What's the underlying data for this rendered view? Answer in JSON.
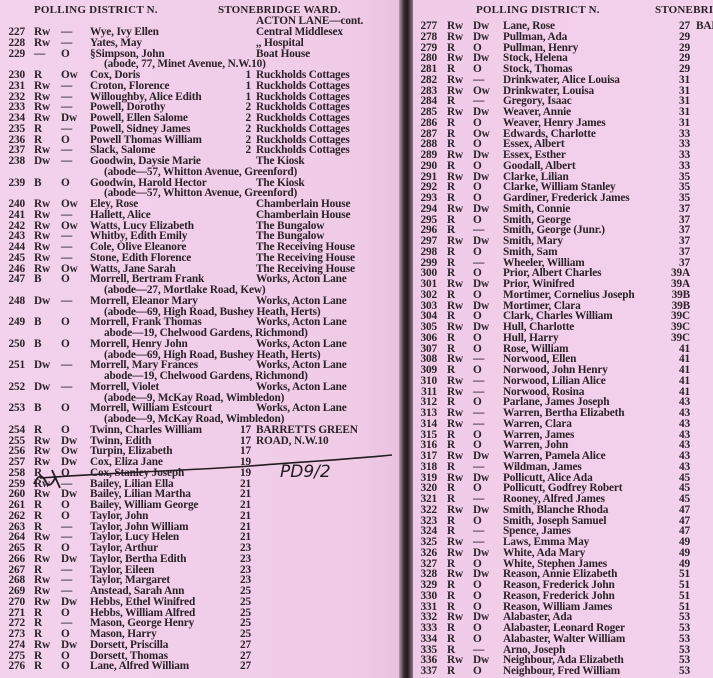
{
  "left_page": {
    "header": {
      "district": "POLLING DISTRICT N.",
      "ward": "STONEBRIDGE WARD."
    },
    "street": "ACTON LANE—cont.",
    "rows": [
      {
        "no": "227",
        "q1": "Rw",
        "q2": "—",
        "name": "Wye, Ivy Ellen",
        "address": "Central Middlesex"
      },
      {
        "no": "228",
        "q1": "Rw",
        "q2": "—",
        "name": "Yates, May",
        "address": ",,  Hospital"
      },
      {
        "no": "229",
        "q1": "—",
        "q2": "O",
        "name": "§Simpson, John",
        "address": "Boat House",
        "abode": "(abode, 77, Minet Avenue, N.W.10)"
      },
      {
        "no": "230",
        "q1": "R",
        "q2": "Ow",
        "name": "Cox, Doris",
        "house": "1",
        "address": "Ruckholds Cottages"
      },
      {
        "no": "231",
        "q1": "Rw",
        "q2": "—",
        "name": "Croton, Florence",
        "house": "1",
        "address": "Ruckholds Cottages"
      },
      {
        "no": "232",
        "q1": "Rw",
        "q2": "—",
        "name": "Willoughby, Alice Edith",
        "house": "1",
        "address": "Ruckholds Cottages"
      },
      {
        "no": "233",
        "q1": "Rw",
        "q2": "—",
        "name": "Powell, Dorothy",
        "house": "2",
        "address": "Ruckholds Cottages"
      },
      {
        "no": "234",
        "q1": "Rw",
        "q2": "Dw",
        "name": "Powell, Ellen Salome",
        "house": "2",
        "address": "Ruckholds Cottages"
      },
      {
        "no": "235",
        "q1": "R",
        "q2": "—",
        "name": "Powell, Sidney James",
        "house": "2",
        "address": "Ruckholds Cottages"
      },
      {
        "no": "236",
        "q1": "R",
        "q2": "O",
        "name": "Powell Thomas William",
        "house": "2",
        "address": "Ruckholds Cottages"
      },
      {
        "no": "237",
        "q1": "Rw",
        "q2": "—",
        "name": "Slack, Salome",
        "house": "2",
        "address": "Ruckholds Cottages"
      },
      {
        "no": "238",
        "q1": "Dw",
        "q2": "—",
        "name": "Goodwin, Daysie Marie",
        "address": "The Kiosk",
        "abode": "(abode—57, Whitton Avenue, Greenford)"
      },
      {
        "no": "239",
        "q1": "B",
        "q2": "O",
        "name": "Goodwin, Harold Hector",
        "address": "The Kiosk",
        "abode": "(abode—57, Whitton Avenue, Greenford)"
      },
      {
        "no": "240",
        "q1": "Rw",
        "q2": "Ow",
        "name": "Eley, Rose",
        "address": "Chamberlain House"
      },
      {
        "no": "241",
        "q1": "Rw",
        "q2": "—",
        "name": "Hallett, Alice",
        "address": "Chamberlain House"
      },
      {
        "no": "242",
        "q1": "Rw",
        "q2": "Ow",
        "name": "Watts, Lucy Elizabeth",
        "address": "The Bungalow"
      },
      {
        "no": "243",
        "q1": "Rw",
        "q2": "—",
        "name": "Whitby, Edith Emily",
        "address": "The Bungalow"
      },
      {
        "no": "244",
        "q1": "Rw",
        "q2": "—",
        "name": "Cole, Olive Eleanore",
        "address": "The Receiving House"
      },
      {
        "no": "245",
        "q1": "Rw",
        "q2": "—",
        "name": "Stone, Edith Florence",
        "address": "The Receiving House"
      },
      {
        "no": "246",
        "q1": "Rw",
        "q2": "Ow",
        "name": "Watts, Jane Sarah",
        "address": "The Receiving House"
      },
      {
        "no": "247",
        "q1": "B",
        "q2": "O",
        "name": "Morrell, Bertram Frank",
        "address": "Works, Acton Lane",
        "abode": "(abode—27, Mortlake Road, Kew)"
      },
      {
        "no": "248",
        "q1": "Dw",
        "q2": "—",
        "name": "Morrell, Eleanor Mary",
        "address": "Works, Acton Lane",
        "abode": "(abode—69, High Road, Bushey Heath, Herts)"
      },
      {
        "no": "249",
        "q1": "B",
        "q2": "O",
        "name": "Morrell, Frank Thomas",
        "address": "Works, Acton Lane",
        "abode": "abode—19, Chelwood Gardens, Richmond)"
      },
      {
        "no": "250",
        "q1": "B",
        "q2": "O",
        "name": "Morrell, Henry John",
        "address": "Works, Acton Lane",
        "abode": "(abode—69, High Road, Bushey Heath, Herts)"
      },
      {
        "no": "251",
        "q1": "Dw",
        "q2": "—",
        "name": "Morrell, Mary Frances",
        "address": "Works, Acton Lane",
        "abode": "abode—19, Chelwood Gardens, Richmond)"
      },
      {
        "no": "252",
        "q1": "Dw",
        "q2": "—",
        "name": "Morrell, Violet",
        "address": "Works, Acton Lane",
        "abode": "(abode—9, McKay Road, Wimbledon)"
      },
      {
        "no": "253",
        "q1": "B",
        "q2": "O",
        "name": "Morrell, William Estcourt",
        "address": "Works, Acton Lane",
        "abode": "(abode—9, McKay Road, Wimbledon)"
      },
      {
        "no": "254",
        "q1": "R",
        "q2": "O",
        "name": "Twinn, Charles William",
        "house": "17",
        "address": "BARRETTS GREEN"
      },
      {
        "no": "255",
        "q1": "Rw",
        "q2": "Dw",
        "name": "Twinn, Edith",
        "house": "17",
        "address": "ROAD, N.W.10"
      },
      {
        "no": "256",
        "q1": "Rw",
        "q2": "Ow",
        "name": "Turpin, Elizabeth",
        "house": "17"
      },
      {
        "no": "257",
        "q1": "Rw",
        "q2": "Dw",
        "name": "Cox, Eliza Jane",
        "house": "19"
      },
      {
        "no": "258",
        "q1": "R",
        "q2": "O",
        "name": "Cox, Stanley Joseph",
        "house": "19"
      },
      {
        "no": "259",
        "q1": "Rw",
        "q2": "—",
        "name": "Bailey, Lilian Ella",
        "house": "21"
      },
      {
        "no": "260",
        "q1": "Rw",
        "q2": "Dw",
        "name": "Bailey, Lilian Martha",
        "house": "21"
      },
      {
        "no": "261",
        "q1": "R",
        "q2": "O",
        "name": "Bailey, William George",
        "house": "21"
      },
      {
        "no": "262",
        "q1": "R",
        "q2": "O",
        "name": "Taylor, John",
        "house": "21"
      },
      {
        "no": "263",
        "q1": "R",
        "q2": "—",
        "name": "Taylor, John William",
        "house": "21"
      },
      {
        "no": "264",
        "q1": "Rw",
        "q2": "—",
        "name": "Taylor, Lucy Helen",
        "house": "21"
      },
      {
        "no": "265",
        "q1": "R",
        "q2": "O",
        "name": "Taylor, Arthur",
        "house": "23"
      },
      {
        "no": "266",
        "q1": "Rw",
        "q2": "Dw",
        "name": "Taylor, Bertha Edith",
        "house": "23"
      },
      {
        "no": "267",
        "q1": "R",
        "q2": "—",
        "name": "Taylor, Eileen",
        "house": "23"
      },
      {
        "no": "268",
        "q1": "Rw",
        "q2": "—",
        "name": "Taylor, Margaret",
        "house": "23"
      },
      {
        "no": "269",
        "q1": "Rw",
        "q2": "—",
        "name": "Anstead, Sarah Ann",
        "house": "25"
      },
      {
        "no": "270",
        "q1": "Rw",
        "q2": "Dw",
        "name": "Hebbs, Ethel Winifred",
        "house": "25"
      },
      {
        "no": "271",
        "q1": "R",
        "q2": "O",
        "name": "Hebbs, William Alfred",
        "house": "25"
      },
      {
        "no": "272",
        "q1": "R",
        "q2": "—",
        "name": "Mason, George Henry",
        "house": "25"
      },
      {
        "no": "273",
        "q1": "R",
        "q2": "O",
        "name": "Mason, Harry",
        "house": "25"
      },
      {
        "no": "274",
        "q1": "Rw",
        "q2": "Dw",
        "name": "Dorsett, Priscilla",
        "house": "27"
      },
      {
        "no": "275",
        "q1": "R",
        "q2": "O",
        "name": "Dorsett, Thomas",
        "house": "27"
      },
      {
        "no": "276",
        "q1": "R",
        "q2": "O",
        "name": "Lane, Alfred William",
        "house": "27"
      }
    ],
    "annotation": "PD9/2"
  },
  "right_page": {
    "header": {
      "district": "POLLING DISTRICT N.",
      "ward": "STONEBRIDGE WARD."
    },
    "rows": [
      {
        "no": "277",
        "q1": "Rw",
        "q2": "Dw",
        "name": "Lane, Rose",
        "house": "27",
        "address": "BARRETTS GREEN"
      },
      {
        "no": "278",
        "q1": "Rw",
        "q2": "Dw",
        "name": "Pullman, Ada",
        "house": "29"
      },
      {
        "no": "279",
        "q1": "R",
        "q2": "O",
        "name": "Pullman, Henry",
        "house": "29"
      },
      {
        "no": "280",
        "q1": "Rw",
        "q2": "Dw",
        "name": "Stock, Helena",
        "house": "29"
      },
      {
        "no": "281",
        "q1": "R",
        "q2": "O",
        "name": "Stock, Thomas",
        "house": "29"
      },
      {
        "no": "282",
        "q1": "Rw",
        "q2": "—",
        "name": "Drinkwater, Alice Louisa",
        "house": "31"
      },
      {
        "no": "283",
        "q1": "Rw",
        "q2": "Ow",
        "name": "Drinkwater, Louisa",
        "house": "31"
      },
      {
        "no": "284",
        "q1": "R",
        "q2": "—",
        "name": "Gregory, Isaac",
        "house": "31"
      },
      {
        "no": "285",
        "q1": "Rw",
        "q2": "Dw",
        "name": "Weaver, Annie",
        "house": "31"
      },
      {
        "no": "286",
        "q1": "R",
        "q2": "O",
        "name": "Weaver, Henry James",
        "house": "31"
      },
      {
        "no": "287",
        "q1": "R",
        "q2": "Ow",
        "name": "Edwards, Charlotte",
        "house": "33"
      },
      {
        "no": "288",
        "q1": "R",
        "q2": "O",
        "name": "Essex, Albert",
        "house": "33"
      },
      {
        "no": "289",
        "q1": "Rw",
        "q2": "Dw",
        "name": "Essex, Esther",
        "house": "33"
      },
      {
        "no": "290",
        "q1": "R",
        "q2": "O",
        "name": "Goodall, Albert",
        "house": "33"
      },
      {
        "no": "291",
        "q1": "Rw",
        "q2": "Dw",
        "name": "Clarke, Lilian",
        "house": "35"
      },
      {
        "no": "292",
        "q1": "R",
        "q2": "O",
        "name": "Clarke, William Stanley",
        "house": "35"
      },
      {
        "no": "293",
        "q1": "R",
        "q2": "O",
        "name": "Gardiner, Frederick James",
        "house": "35"
      },
      {
        "no": "294",
        "q1": "Rw",
        "q2": "Dw",
        "name": "Smith, Connie",
        "house": "37"
      },
      {
        "no": "295",
        "q1": "R",
        "q2": "O",
        "name": "Smith, George",
        "house": "37"
      },
      {
        "no": "296",
        "q1": "R",
        "q2": "—",
        "name": "Smith, George (Junr.)",
        "house": "37"
      },
      {
        "no": "297",
        "q1": "Rw",
        "q2": "Dw",
        "name": "Smith, Mary",
        "house": "37"
      },
      {
        "no": "298",
        "q1": "R",
        "q2": "O",
        "name": "Smith, Sam",
        "house": "37"
      },
      {
        "no": "299",
        "q1": "R",
        "q2": "—",
        "name": "Wheeler, William",
        "house": "37"
      },
      {
        "no": "300",
        "q1": "R",
        "q2": "O",
        "name": "Prior, Albert Charles",
        "house": "39A"
      },
      {
        "no": "301",
        "q1": "Rw",
        "q2": "Dw",
        "name": "Prior, Winifred",
        "house": "39A"
      },
      {
        "no": "302",
        "q1": "R",
        "q2": "O",
        "name": "Mortimer, Cornelius Joseph",
        "house": "39B"
      },
      {
        "no": "303",
        "q1": "Rw",
        "q2": "Dw",
        "name": "Mortimer, Clara",
        "house": "39B"
      },
      {
        "no": "304",
        "q1": "R",
        "q2": "O",
        "name": "Clark, Charles William",
        "house": "39C"
      },
      {
        "no": "305",
        "q1": "Rw",
        "q2": "Dw",
        "name": "Hull, Charlotte",
        "house": "39C"
      },
      {
        "no": "306",
        "q1": "R",
        "q2": "O",
        "name": "Hull, Harry",
        "house": "39C"
      },
      {
        "no": "307",
        "q1": "R",
        "q2": "O",
        "name": "Rose, William",
        "house": "41"
      },
      {
        "no": "308",
        "q1": "Rw",
        "q2": "—",
        "name": "Norwood, Ellen",
        "house": "41"
      },
      {
        "no": "309",
        "q1": "R",
        "q2": "O",
        "name": "Norwood, John Henry",
        "house": "41"
      },
      {
        "no": "310",
        "q1": "Rw",
        "q2": "—",
        "name": "Norwood, Lilian Alice",
        "house": "41"
      },
      {
        "no": "311",
        "q1": "Rw",
        "q2": "—",
        "name": "Norwood, Rosina",
        "house": "41"
      },
      {
        "no": "312",
        "q1": "R",
        "q2": "O",
        "name": "Parlane, James Joseph",
        "house": "43"
      },
      {
        "no": "313",
        "q1": "Rw",
        "q2": "—",
        "name": "Warren, Bertha Elizabeth",
        "house": "43"
      },
      {
        "no": "314",
        "q1": "Rw",
        "q2": "—",
        "name": "Warren, Clara",
        "house": "43"
      },
      {
        "no": "315",
        "q1": "R",
        "q2": "O",
        "name": "Warren, James",
        "house": "43"
      },
      {
        "no": "316",
        "q1": "R",
        "q2": "O",
        "name": "Warren, John",
        "house": "43"
      },
      {
        "no": "317",
        "q1": "Rw",
        "q2": "Dw",
        "name": "Warren, Pamela Alice",
        "house": "43"
      },
      {
        "no": "318",
        "q1": "R",
        "q2": "—",
        "name": "Wildman, James",
        "house": "43"
      },
      {
        "no": "319",
        "q1": "Rw",
        "q2": "Dw",
        "name": "Pollicutt, Alice Ada",
        "house": "45"
      },
      {
        "no": "320",
        "q1": "R",
        "q2": "O",
        "name": "Pollicutt, Godfrey Robert",
        "house": "45"
      },
      {
        "no": "321",
        "q1": "R",
        "q2": "—",
        "name": "Rooney, Alfred James",
        "house": "45"
      },
      {
        "no": "322",
        "q1": "Rw",
        "q2": "Dw",
        "name": "Smith, Blanche Rhoda",
        "house": "47"
      },
      {
        "no": "323",
        "q1": "R",
        "q2": "O",
        "name": "Smith, Joseph Samuel",
        "house": "47"
      },
      {
        "no": "324",
        "q1": "R",
        "q2": "—",
        "name": "Spence, James",
        "house": "47"
      },
      {
        "no": "325",
        "q1": "Rw",
        "q2": "—",
        "name": "Laws, Emma May",
        "house": "49"
      },
      {
        "no": "326",
        "q1": "Rw",
        "q2": "Dw",
        "name": "White, Ada Mary",
        "house": "49"
      },
      {
        "no": "327",
        "q1": "R",
        "q2": "O",
        "name": "White, Stephen James",
        "house": "49"
      },
      {
        "no": "328",
        "q1": "Rw",
        "q2": "Dw",
        "name": "Reason, Annie Elizabeth",
        "house": "51"
      },
      {
        "no": "329",
        "q1": "R",
        "q2": "O",
        "name": "Reason, Frederick John",
        "house": "51"
      },
      {
        "no": "330",
        "q1": "R",
        "q2": "O",
        "name": "Reason, Frederick John",
        "house": "51"
      },
      {
        "no": "331",
        "q1": "R",
        "q2": "O",
        "name": "Reason, William James",
        "house": "51"
      },
      {
        "no": "332",
        "q1": "Rw",
        "q2": "Dw",
        "name": "Alabaster, Ada",
        "house": "53"
      },
      {
        "no": "333",
        "q1": "R",
        "q2": "O",
        "name": "Alabaster, Leonard Roger",
        "house": "53"
      },
      {
        "no": "334",
        "q1": "R",
        "q2": "O",
        "name": "Alabaster, Walter William",
        "house": "53"
      },
      {
        "no": "335",
        "q1": "R",
        "q2": "—",
        "name": "Arno, Joseph",
        "house": "53"
      },
      {
        "no": "336",
        "q1": "Rw",
        "q2": "Dw",
        "name": "Neighbour, Ada Elizabeth",
        "house": "53"
      },
      {
        "no": "337",
        "q1": "R",
        "q2": "O",
        "name": "Neighbour, Fred William",
        "house": "53"
      }
    ]
  }
}
